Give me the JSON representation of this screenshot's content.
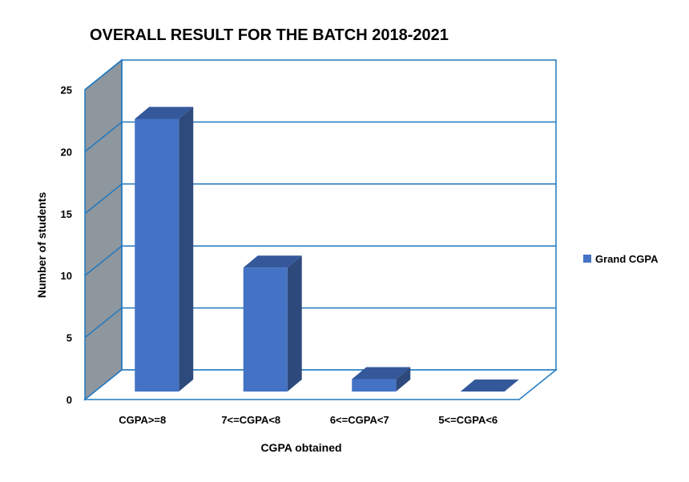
{
  "chart_data": {
    "type": "bar",
    "title": "OVERALL RESULT FOR THE BATCH 2018-2021",
    "xlabel": "CGPA obtained",
    "ylabel": "Number of students",
    "categories": [
      "CGPA>=8",
      "7<=CGPA<8",
      "6<=CGPA<7",
      "5<=CGPA<6"
    ],
    "series": [
      {
        "name": "Grand CGPA",
        "values": [
          22,
          10,
          1,
          0
        ]
      }
    ],
    "ylim": [
      0,
      25
    ],
    "yticks": [
      "0",
      "5",
      "10",
      "15",
      "20",
      "25"
    ],
    "grid": true,
    "legend": "right",
    "style": "3d",
    "colors": {
      "bar_front": "#4472C4",
      "bar_side": "#2E4A7D",
      "bar_top": "#34589A",
      "grid": "#1F78C1",
      "wall_left": "#8E969E",
      "text": "#000000"
    }
  }
}
